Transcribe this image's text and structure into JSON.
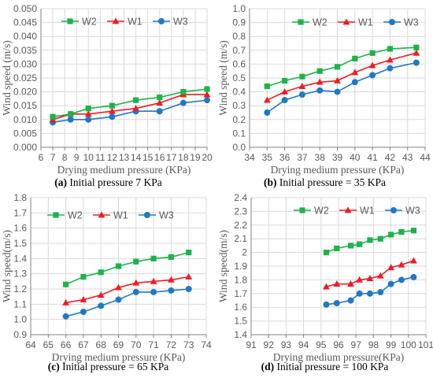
{
  "figure": {
    "panels": [
      {
        "letter": "(a)",
        "caption_text": " Initial pressure 7 KPa"
      },
      {
        "letter": "(b)",
        "caption_text": " Initial pressure = 35 KPa"
      },
      {
        "letter": "(c)",
        "caption_text": " Initial pressure = 65 KPa"
      },
      {
        "letter": "(d)",
        "caption_text": " Initial pressure = 100 KPa"
      }
    ]
  },
  "colors": {
    "W2": "#1db34a",
    "W1": "#ee1c24",
    "W3": "#1f78c8",
    "grid": "#d9d9d9",
    "axis": "#808080",
    "text": "#595959"
  },
  "chart_data": [
    {
      "type": "line",
      "title": "",
      "xlabel": "Drying medium pressure (KPa)",
      "ylabel": "Wind speed (m/s)",
      "xlim": [
        6,
        20
      ],
      "ylim": [
        0,
        0.05
      ],
      "xticks": [
        6,
        7,
        8,
        9,
        10,
        11,
        12,
        13,
        14,
        15,
        16,
        17,
        18,
        19,
        20
      ],
      "yticks": [
        "0.000",
        "0.005",
        "0.010",
        "0.015",
        "0.020",
        "0.025",
        "0.030",
        "0.035",
        "0.040",
        "0.045",
        "0.050"
      ],
      "grid": true,
      "legend": "top-left",
      "series": [
        {
          "name": "W2",
          "marker": "square",
          "x": [
            7,
            8.5,
            10,
            12,
            14,
            16,
            18,
            20
          ],
          "y": [
            0.011,
            0.012,
            0.014,
            0.015,
            0.017,
            0.018,
            0.02,
            0.021
          ]
        },
        {
          "name": "W1",
          "marker": "triangle",
          "x": [
            7,
            8.5,
            10,
            12,
            14,
            16,
            18,
            20
          ],
          "y": [
            0.01,
            0.012,
            0.012,
            0.013,
            0.014,
            0.016,
            0.019,
            0.019
          ]
        },
        {
          "name": "W3",
          "marker": "circle",
          "x": [
            7,
            8.5,
            10,
            12,
            14,
            16,
            18,
            20
          ],
          "y": [
            0.009,
            0.01,
            0.01,
            0.011,
            0.013,
            0.013,
            0.016,
            0.017
          ]
        }
      ]
    },
    {
      "type": "line",
      "title": "",
      "xlabel": "Drying medium pressure (KPa)",
      "ylabel": "Wind speed (m/s)",
      "xlim": [
        34,
        44
      ],
      "ylim": [
        0,
        1.0
      ],
      "xticks": [
        34,
        35,
        36,
        37,
        38,
        39,
        40,
        41,
        42,
        43,
        44
      ],
      "yticks": [
        "0.0",
        "0.1",
        "0.2",
        "0.3",
        "0.4",
        "0.5",
        "0.6",
        "0.7",
        "0.8",
        "0.9",
        "1.0"
      ],
      "grid": true,
      "legend": "top",
      "series": [
        {
          "name": "W2",
          "marker": "square",
          "x": [
            35,
            36,
            37,
            38,
            39,
            40,
            41,
            42,
            43.5
          ],
          "y": [
            0.44,
            0.48,
            0.51,
            0.55,
            0.58,
            0.64,
            0.68,
            0.71,
            0.72
          ]
        },
        {
          "name": "W1",
          "marker": "triangle",
          "x": [
            35,
            36,
            37,
            38,
            39,
            40,
            41,
            42,
            43.5
          ],
          "y": [
            0.34,
            0.4,
            0.44,
            0.47,
            0.48,
            0.54,
            0.59,
            0.63,
            0.68
          ]
        },
        {
          "name": "W3",
          "marker": "circle",
          "x": [
            35,
            36,
            37,
            38,
            39,
            40,
            41,
            42,
            43.5
          ],
          "y": [
            0.25,
            0.34,
            0.38,
            0.41,
            0.4,
            0.47,
            0.52,
            0.57,
            0.61
          ]
        }
      ]
    },
    {
      "type": "line",
      "title": "",
      "xlabel": "Drying medium pressure (KPa)",
      "ylabel": "Wind speed(m/s)",
      "xlim": [
        64,
        74
      ],
      "ylim": [
        0.9,
        1.8
      ],
      "xticks": [
        64,
        65,
        66,
        67,
        68,
        69,
        70,
        71,
        72,
        73,
        74
      ],
      "yticks": [
        "0.9",
        "1.0",
        "1.1",
        "1.2",
        "1.3",
        "1.4",
        "1.5",
        "1.6",
        "1.7",
        "1.8"
      ],
      "grid": true,
      "legend": "top-left",
      "series": [
        {
          "name": "W2",
          "marker": "square",
          "x": [
            66,
            67,
            68,
            69,
            70,
            71,
            72,
            73
          ],
          "y": [
            1.23,
            1.28,
            1.31,
            1.35,
            1.38,
            1.4,
            1.41,
            1.44
          ]
        },
        {
          "name": "W1",
          "marker": "triangle",
          "x": [
            66,
            67,
            68,
            69,
            70,
            71,
            72,
            73
          ],
          "y": [
            1.11,
            1.13,
            1.16,
            1.21,
            1.24,
            1.25,
            1.26,
            1.28
          ]
        },
        {
          "name": "W3",
          "marker": "circle",
          "x": [
            66,
            67,
            68,
            69,
            70,
            71,
            72,
            73
          ],
          "y": [
            1.02,
            1.05,
            1.09,
            1.13,
            1.18,
            1.18,
            1.19,
            1.2
          ]
        }
      ]
    },
    {
      "type": "line",
      "title": "",
      "xlabel": "Drying medium pressure(KPa)",
      "ylabel": "Wind speed(m/s)",
      "xlim": [
        91,
        101
      ],
      "ylim": [
        1.4,
        2.4
      ],
      "xticks": [
        91,
        92,
        93,
        94,
        95,
        96,
        97,
        98,
        99,
        100,
        101
      ],
      "yticks": [
        "1.4",
        "1.5",
        "1.6",
        "1.7",
        "1.8",
        "1.9",
        "2",
        "2.1",
        "2.2",
        "2.3",
        "2.4"
      ],
      "grid": true,
      "legend": "top",
      "series": [
        {
          "name": "W2",
          "marker": "square",
          "x": [
            95.3,
            95.9,
            96.7,
            97.2,
            97.8,
            98.4,
            99,
            99.6,
            100.3
          ],
          "y": [
            2.0,
            2.03,
            2.05,
            2.06,
            2.09,
            2.1,
            2.13,
            2.15,
            2.16
          ]
        },
        {
          "name": "W1",
          "marker": "triangle",
          "x": [
            95.3,
            95.9,
            96.7,
            97.2,
            97.8,
            98.4,
            99,
            99.6,
            100.3
          ],
          "y": [
            1.75,
            1.77,
            1.77,
            1.8,
            1.81,
            1.83,
            1.89,
            1.91,
            1.94
          ]
        },
        {
          "name": "W3",
          "marker": "circle",
          "x": [
            95.3,
            95.9,
            96.7,
            97.2,
            97.8,
            98.4,
            99,
            99.6,
            100.3
          ],
          "y": [
            1.62,
            1.63,
            1.65,
            1.7,
            1.7,
            1.71,
            1.77,
            1.8,
            1.82
          ]
        }
      ]
    }
  ]
}
